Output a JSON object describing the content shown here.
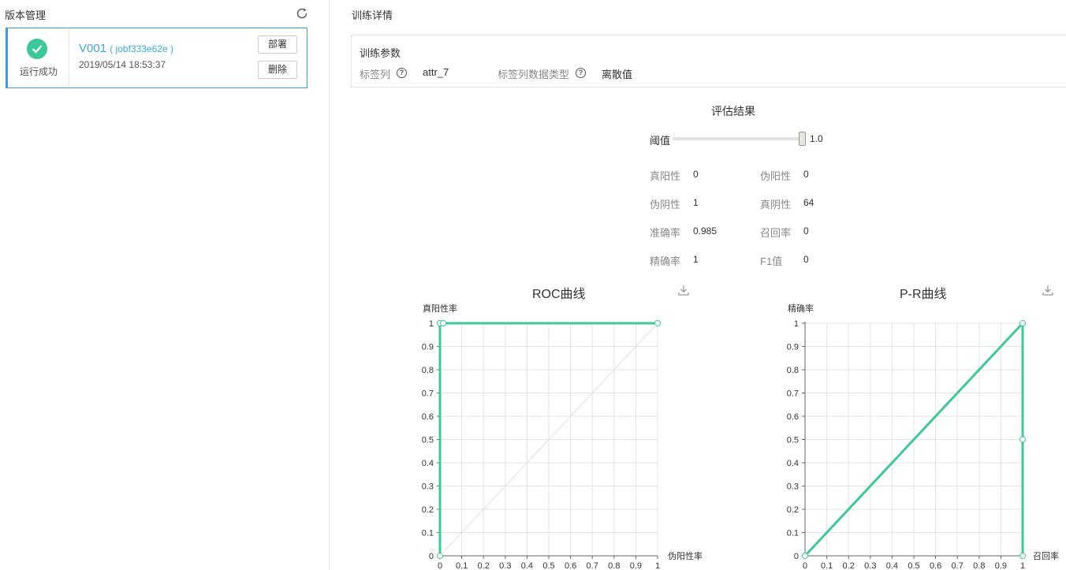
{
  "left": {
    "title": "版本管理",
    "card": {
      "status": "运行成功",
      "version": "V001",
      "job": "( jobf333e62e )",
      "time": "2019/05/14 18:53:37",
      "deploy": "部署",
      "delete": "删除"
    }
  },
  "right": {
    "title": "训练详情",
    "params": {
      "title": "训练参数",
      "label_col": "标签列",
      "label_col_value": "attr_7",
      "label_type": "标签列数据类型",
      "label_type_value": "离散值",
      "help": "?"
    },
    "eval": {
      "title": "评估结果",
      "threshold_label": "阈值",
      "threshold": "1.0",
      "metrics": [
        {
          "label": "真阳性",
          "value": "0"
        },
        {
          "label": "伪阳性",
          "value": "0"
        },
        {
          "label": "伪阴性",
          "value": "1"
        },
        {
          "label": "真阴性",
          "value": "64"
        },
        {
          "label": "准确率",
          "value": "0.985"
        },
        {
          "label": "召回率",
          "value": "0"
        },
        {
          "label": "精确率",
          "value": "1"
        },
        {
          "label": "F1值",
          "value": "0"
        }
      ]
    }
  },
  "chart_data": [
    {
      "type": "line",
      "title": "ROC曲线",
      "xlabel": "伪阳性率",
      "ylabel": "真阳性率",
      "xlim": [
        0,
        1
      ],
      "ylim": [
        0,
        1
      ],
      "ticks": [
        "0",
        "0.1",
        "0.2",
        "0.3",
        "0.4",
        "0.5",
        "0.6",
        "0.7",
        "0.8",
        "0.9",
        "1"
      ],
      "series": [
        {
          "name": "ROC",
          "x": [
            0,
            0,
            0.015,
            1
          ],
          "y": [
            0,
            1,
            1,
            1
          ]
        },
        {
          "name": "diagonal",
          "x": [
            0,
            1
          ],
          "y": [
            0,
            1
          ]
        }
      ],
      "colors": {
        "line": "#3cc89b",
        "diagonal": "#e4e4e4"
      }
    },
    {
      "type": "line",
      "title": "P-R曲线",
      "xlabel": "召回率",
      "ylabel": "精确率",
      "xlim": [
        0,
        1
      ],
      "ylim": [
        0,
        1
      ],
      "ticks": [
        "0",
        "0.1",
        "0.2",
        "0.3",
        "0.4",
        "0.5",
        "0.6",
        "0.7",
        "0.8",
        "0.9",
        "1"
      ],
      "series": [
        {
          "name": "PR",
          "x": [
            0,
            1,
            1,
            1
          ],
          "y": [
            0,
            1,
            0.5,
            0
          ]
        }
      ],
      "colors": {
        "line": "#3cc89b"
      }
    }
  ]
}
